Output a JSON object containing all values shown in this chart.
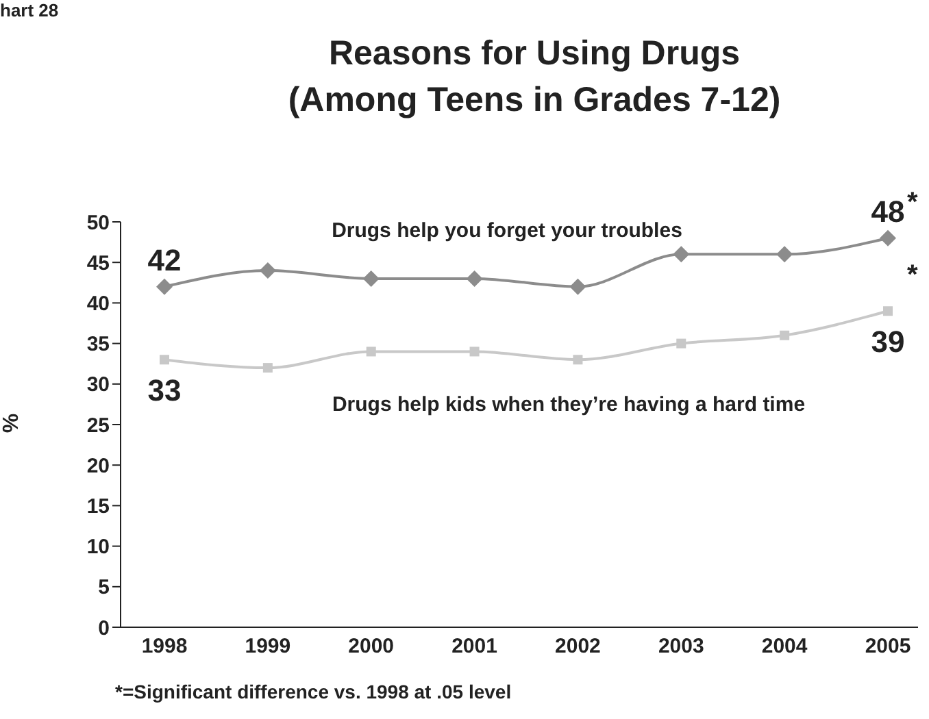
{
  "chart_data": {
    "type": "line",
    "title": "Reasons for Using Drugs\n(Among Teens in Grades 7-12)",
    "ylabel": "%",
    "categories": [
      "1998",
      "1999",
      "2000",
      "2001",
      "2002",
      "2003",
      "2004",
      "2005"
    ],
    "series": [
      {
        "name": "Drugs help you forget your troubles",
        "color": "#8c8c8c",
        "marker": "diamond",
        "values": [
          42,
          44,
          43,
          43,
          42,
          46,
          46,
          48
        ],
        "value_labels": [
          "42",
          null,
          null,
          null,
          null,
          null,
          null,
          "48"
        ]
      },
      {
        "name": "Drugs help kids when they’re having a hard time",
        "color": "#c8c8c8",
        "marker": "square",
        "values": [
          33,
          32,
          34,
          34,
          33,
          35,
          36,
          39
        ],
        "value_labels": [
          "33",
          null,
          null,
          null,
          null,
          null,
          null,
          "39"
        ]
      }
    ],
    "ylim": [
      0,
      50
    ],
    "yticks": [
      0,
      5,
      10,
      15,
      20,
      25,
      30,
      35,
      40,
      45,
      50
    ],
    "grid": false,
    "legend": false,
    "line_style": "solid",
    "annotations": [
      "hart 28",
      {
        "text": "*",
        "x": "2005",
        "y": 48
      },
      {
        "text": "*",
        "x": "2005",
        "y": 39
      },
      "*=Significant difference vs. 1998 at .05 level"
    ]
  }
}
